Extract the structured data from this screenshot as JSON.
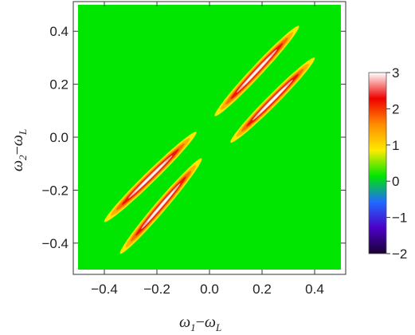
{
  "chart_data": {
    "type": "heatmap",
    "x": {
      "label_main": "ω",
      "label_sub1": "1",
      "label_minus": "−",
      "label_main2": "ω",
      "label_sub2": "L",
      "range": [
        -0.5,
        0.5
      ],
      "ticks": [
        -0.4,
        -0.2,
        0.0,
        0.2,
        0.4
      ],
      "tick_labels": [
        "−0.4",
        "−0.2",
        "0.0",
        "0.2",
        "0.4"
      ]
    },
    "y": {
      "label_main": "ω",
      "label_sub1": "2",
      "label_minus": "−",
      "label_main2": "ω",
      "label_sub2": "L",
      "range": [
        -0.5,
        0.5
      ],
      "ticks": [
        -0.4,
        -0.2,
        0.0,
        0.2,
        0.4
      ],
      "tick_labels": [
        "−0.4",
        "−0.2",
        "0.0",
        "0.2",
        "0.4"
      ]
    },
    "background_value": 0,
    "color_range": [
      -2,
      3
    ],
    "colorbar": {
      "ticks": [
        3,
        2,
        1,
        0,
        -1,
        -2
      ],
      "tick_labels": [
        "3",
        "2",
        "1",
        "0",
        "−1",
        "−2"
      ],
      "colors": [
        "#1a0033",
        "#4b00c8",
        "#1f6bff",
        "#00e600",
        "#ffea00",
        "#ff8c00",
        "#ee0000",
        "#ffffff"
      ]
    },
    "features": [
      {
        "name": "ridge-upper-left",
        "x_start": -0.4,
        "y_start": -0.32,
        "x_end": -0.05,
        "y_end": 0.02,
        "peak": 3
      },
      {
        "name": "ridge-lower-center",
        "x_start": -0.34,
        "y_start": -0.44,
        "x_end": -0.03,
        "y_end": -0.08,
        "peak": 3
      },
      {
        "name": "ridge-upper-center",
        "x_start": 0.02,
        "y_start": 0.08,
        "x_end": 0.34,
        "y_end": 0.42,
        "peak": 3
      },
      {
        "name": "ridge-right",
        "x_start": 0.08,
        "y_start": -0.02,
        "x_end": 0.4,
        "y_end": 0.3,
        "peak": 3
      }
    ],
    "grid": false,
    "legend": "colorbar-right"
  }
}
